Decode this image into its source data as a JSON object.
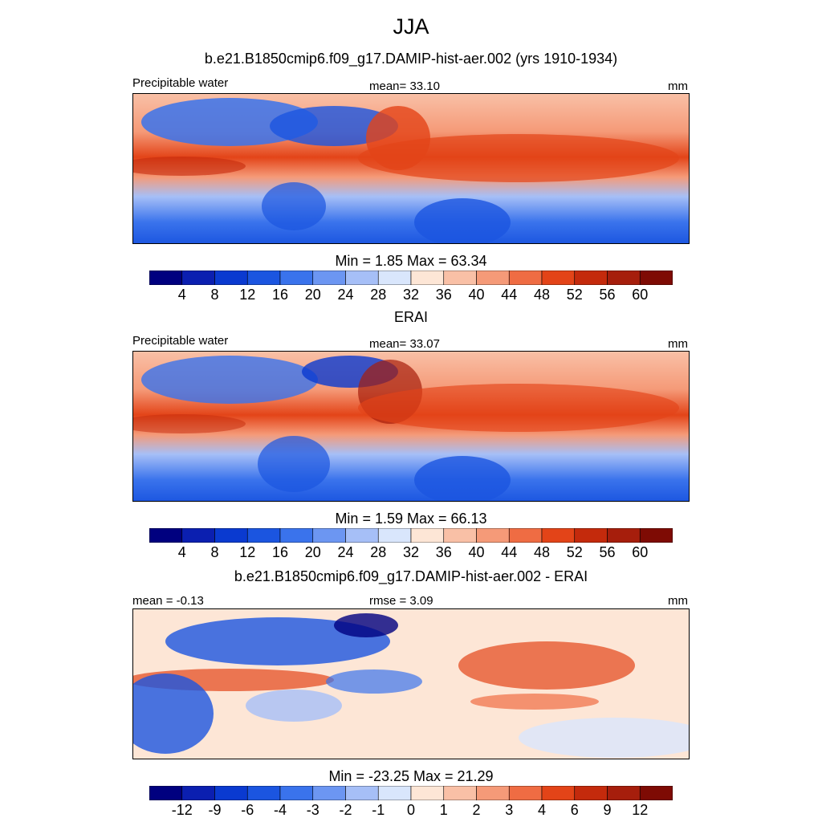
{
  "main_title": "JJA",
  "panels": [
    {
      "title": "b.e21.B1850cmip6.f09_g17.DAMIP-hist-aer.002 (yrs 1910-1934)",
      "left_label": "Precipitable water",
      "center_label": "mean=  33.10",
      "right_label": "mm",
      "minmax": "Min =   1.85 Max =  63.34",
      "colorbar_ticks": [
        "4",
        "8",
        "12",
        "16",
        "20",
        "24",
        "28",
        "32",
        "36",
        "40",
        "44",
        "48",
        "52",
        "56",
        "60"
      ]
    },
    {
      "title": "ERAI",
      "left_label": "Precipitable water",
      "center_label": "mean=  33.07",
      "right_label": "mm",
      "minmax": "Min =   1.59 Max =  66.13",
      "colorbar_ticks": [
        "4",
        "8",
        "12",
        "16",
        "20",
        "24",
        "28",
        "32",
        "36",
        "40",
        "44",
        "48",
        "52",
        "56",
        "60"
      ]
    },
    {
      "title": "b.e21.B1850cmip6.f09_g17.DAMIP-hist-aer.002 - ERAI",
      "left_label": "mean =  -0.13",
      "center_label": "rmse =   3.09",
      "right_label": "mm",
      "minmax": "Min = -23.25 Max =  21.29",
      "colorbar_ticks": [
        "-12",
        "-9",
        "-6",
        "-4",
        "-3",
        "-2",
        "-1",
        "0",
        "1",
        "2",
        "3",
        "4",
        "6",
        "9",
        "12"
      ]
    }
  ],
  "colorbar_colors": [
    "#00007f",
    "#0b1fb0",
    "#0a3ad0",
    "#1b55e0",
    "#3a73ec",
    "#6c96f2",
    "#a6bff7",
    "#d9e6fc",
    "#fde6d6",
    "#f9c0a6",
    "#f59a78",
    "#ef6c43",
    "#e34418",
    "#c42a0c",
    "#a61e0c",
    "#7e0b04"
  ]
}
